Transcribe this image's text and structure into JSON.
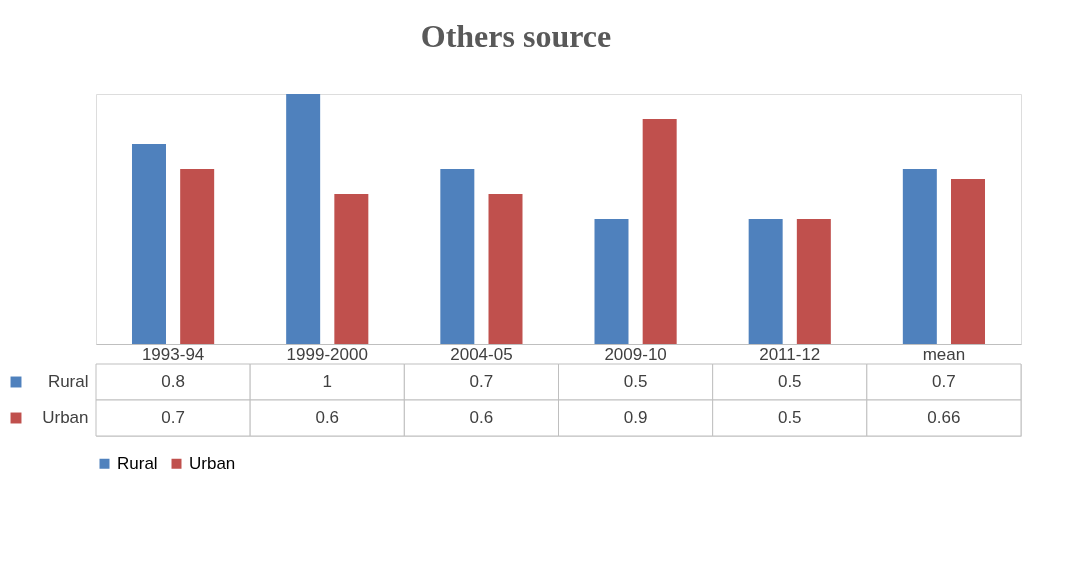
{
  "chart_data": {
    "type": "bar",
    "title": "Others source",
    "categories": [
      "1993-94",
      "1999-2000",
      "2004-05",
      "2009-10",
      "2011-12",
      "mean"
    ],
    "series": [
      {
        "name": "Rural",
        "color": "#4f81bd",
        "values": [
          0.8,
          1,
          0.7,
          0.5,
          0.5,
          0.7
        ]
      },
      {
        "name": "Urban",
        "color": "#c0504d",
        "values": [
          0.7,
          0.6,
          0.6,
          0.9,
          0.5,
          0.66
        ]
      }
    ],
    "data_labels": true,
    "legend": "bottom",
    "grid": false
  }
}
